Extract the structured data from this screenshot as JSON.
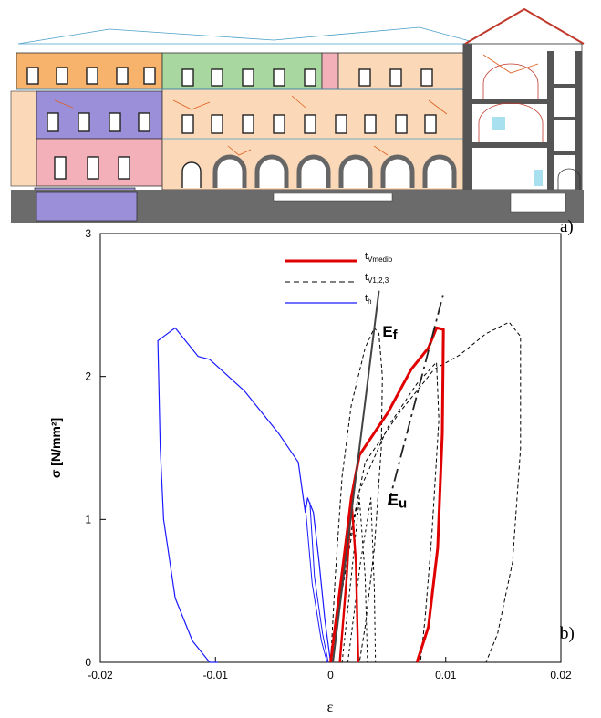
{
  "panel_labels": {
    "a": "a)",
    "b": "b)"
  },
  "drawing": {
    "description_colors": {
      "orange": "#f7b26b",
      "green": "#a8d8a0",
      "purple": "#9a8fd8",
      "pink": "#f4b0b8",
      "peach": "#fbd8b8",
      "wall_gray": "#555555",
      "roof_red": "#c0392b"
    }
  },
  "chart_data": {
    "type": "line",
    "xlabel": "ε",
    "ylabel": "σ [N/mm²]",
    "xlim": [
      -0.02,
      0.02
    ],
    "ylim": [
      0,
      3
    ],
    "x_ticks": [
      "-0.02",
      "-0.01",
      "0",
      "0.01",
      "0.02"
    ],
    "y_ticks": [
      "0",
      "1",
      "2",
      "3"
    ],
    "grid": false,
    "legend_position": "top-center",
    "legend": [
      {
        "main": "t",
        "sub": "Vmedio",
        "color": "#e00000",
        "style": "solid-thick"
      },
      {
        "main": "t",
        "sub": "V1,2,3",
        "color": "#000000",
        "style": "dashed"
      },
      {
        "main": "t",
        "sub": "h",
        "color": "#1a1aff",
        "style": "solid"
      }
    ],
    "annotations": [
      {
        "main": "E",
        "sub": "f",
        "x": 0.0045,
        "y": 2.28
      },
      {
        "main": "E",
        "sub": "u",
        "x": 0.005,
        "y": 1.1
      }
    ],
    "series": [
      {
        "color": "#1a1aff",
        "width": 1.2,
        "dash": "",
        "points": [
          [
            0,
            0
          ],
          [
            -0.0005,
            0.3
          ],
          [
            -0.001,
            0.7
          ],
          [
            -0.0015,
            1.05
          ],
          [
            -0.002,
            1.15
          ],
          [
            -0.0022,
            1.05
          ],
          [
            -0.0028,
            1.4
          ],
          [
            -0.0045,
            1.6
          ],
          [
            -0.0075,
            1.9
          ],
          [
            -0.0105,
            2.12
          ],
          [
            -0.0115,
            2.14
          ],
          [
            -0.0135,
            2.34
          ],
          [
            -0.0145,
            2.28
          ],
          [
            -0.015,
            2.25
          ],
          [
            -0.0148,
            1.5
          ],
          [
            -0.0145,
            1.0
          ],
          [
            -0.0135,
            0.45
          ],
          [
            -0.012,
            0.15
          ],
          [
            -0.0105,
            0.0
          ],
          [
            -0.0098,
            0.0
          ]
        ]
      },
      {
        "color": "#1a1aff",
        "width": 1.0,
        "dash": "",
        "points": [
          [
            -0.0018,
            1.12
          ],
          [
            -0.0014,
            0.6
          ],
          [
            -0.0007,
            0.2
          ],
          [
            -0.0002,
            0.0
          ]
        ]
      },
      {
        "color": "#1a1aff",
        "width": 1.0,
        "dash": "",
        "points": [
          [
            -0.0022,
            1.1
          ],
          [
            -0.0016,
            0.55
          ],
          [
            -0.0008,
            0.15
          ],
          [
            -0.0003,
            0.0
          ]
        ]
      },
      {
        "color": "#000000",
        "width": 1.0,
        "dash": "4,3",
        "points": [
          [
            0.0,
            0.0
          ],
          [
            0.0004,
            0.6
          ],
          [
            0.001,
            1.3
          ],
          [
            0.0018,
            1.8
          ],
          [
            0.003,
            2.2
          ],
          [
            0.0038,
            2.34
          ],
          [
            0.0042,
            2.3
          ],
          [
            0.0045,
            2.0
          ],
          [
            0.0044,
            1.5
          ],
          [
            0.0038,
            0.8
          ],
          [
            0.003,
            0.25
          ],
          [
            0.0025,
            0.0
          ]
        ]
      },
      {
        "color": "#000000",
        "width": 1.0,
        "dash": "4,3",
        "points": [
          [
            0.0,
            0.0
          ],
          [
            0.0015,
            0.8
          ],
          [
            0.003,
            1.4
          ],
          [
            0.006,
            1.75
          ],
          [
            0.009,
            2.05
          ],
          [
            0.0112,
            2.15
          ],
          [
            0.0135,
            2.3
          ],
          [
            0.0155,
            2.38
          ],
          [
            0.0165,
            2.28
          ],
          [
            0.0165,
            1.5
          ],
          [
            0.0158,
            0.7
          ],
          [
            0.0145,
            0.2
          ],
          [
            0.0135,
            0.0
          ]
        ]
      },
      {
        "color": "#000000",
        "width": 1.0,
        "dash": "4,3",
        "points": [
          [
            0.0,
            0.0
          ],
          [
            0.001,
            0.5
          ],
          [
            0.0025,
            1.2
          ],
          [
            0.005,
            1.65
          ],
          [
            0.0075,
            1.95
          ],
          [
            0.0092,
            2.1
          ],
          [
            0.0094,
            1.7
          ],
          [
            0.0088,
            0.9
          ],
          [
            0.0082,
            0.3
          ],
          [
            0.0078,
            0.0
          ]
        ]
      },
      {
        "color": "#000000",
        "width": 1.0,
        "dash": "3,3",
        "points": [
          [
            0.001,
            0.0
          ],
          [
            0.0018,
            0.6
          ],
          [
            0.0025,
            1.15
          ],
          [
            0.003,
            0.6
          ],
          [
            0.0032,
            0.0
          ]
        ]
      },
      {
        "color": "#000000",
        "width": 1.0,
        "dash": "3,3",
        "points": [
          [
            0.0015,
            0.0
          ],
          [
            0.0026,
            0.7
          ],
          [
            0.0035,
            1.15
          ],
          [
            0.0038,
            0.5
          ],
          [
            0.0039,
            0.0
          ]
        ]
      },
      {
        "color": "#e00000",
        "width": 3,
        "dash": "",
        "points": [
          [
            0.0,
            0.0
          ],
          [
            0.0008,
            0.5
          ],
          [
            0.0015,
            0.95
          ],
          [
            0.0018,
            1.15
          ],
          [
            0.0025,
            1.45
          ],
          [
            0.005,
            1.75
          ],
          [
            0.007,
            2.05
          ],
          [
            0.0085,
            2.2
          ],
          [
            0.0092,
            2.34
          ],
          [
            0.0098,
            2.33
          ],
          [
            0.0097,
            1.6
          ],
          [
            0.0093,
            0.8
          ],
          [
            0.0085,
            0.25
          ],
          [
            0.0075,
            0.0
          ]
        ]
      },
      {
        "color": "#e00000",
        "width": 2.4,
        "dash": "",
        "points": [
          [
            0.0008,
            0.0
          ],
          [
            0.0014,
            0.6
          ],
          [
            0.0018,
            1.15
          ],
          [
            0.0022,
            0.7
          ],
          [
            0.0024,
            0.0
          ]
        ]
      }
    ],
    "tangent_lines": [
      {
        "name": "Ef",
        "color": "#444444",
        "width": 2,
        "dash": "",
        "points": [
          [
            0.0002,
            0.0
          ],
          [
            0.0042,
            2.6
          ]
        ]
      },
      {
        "name": "Eu",
        "color": "#222222",
        "width": 1.8,
        "dash": "14,5,3,5",
        "points": [
          [
            0.005,
            1.1
          ],
          [
            0.0098,
            2.58
          ]
        ]
      }
    ]
  }
}
